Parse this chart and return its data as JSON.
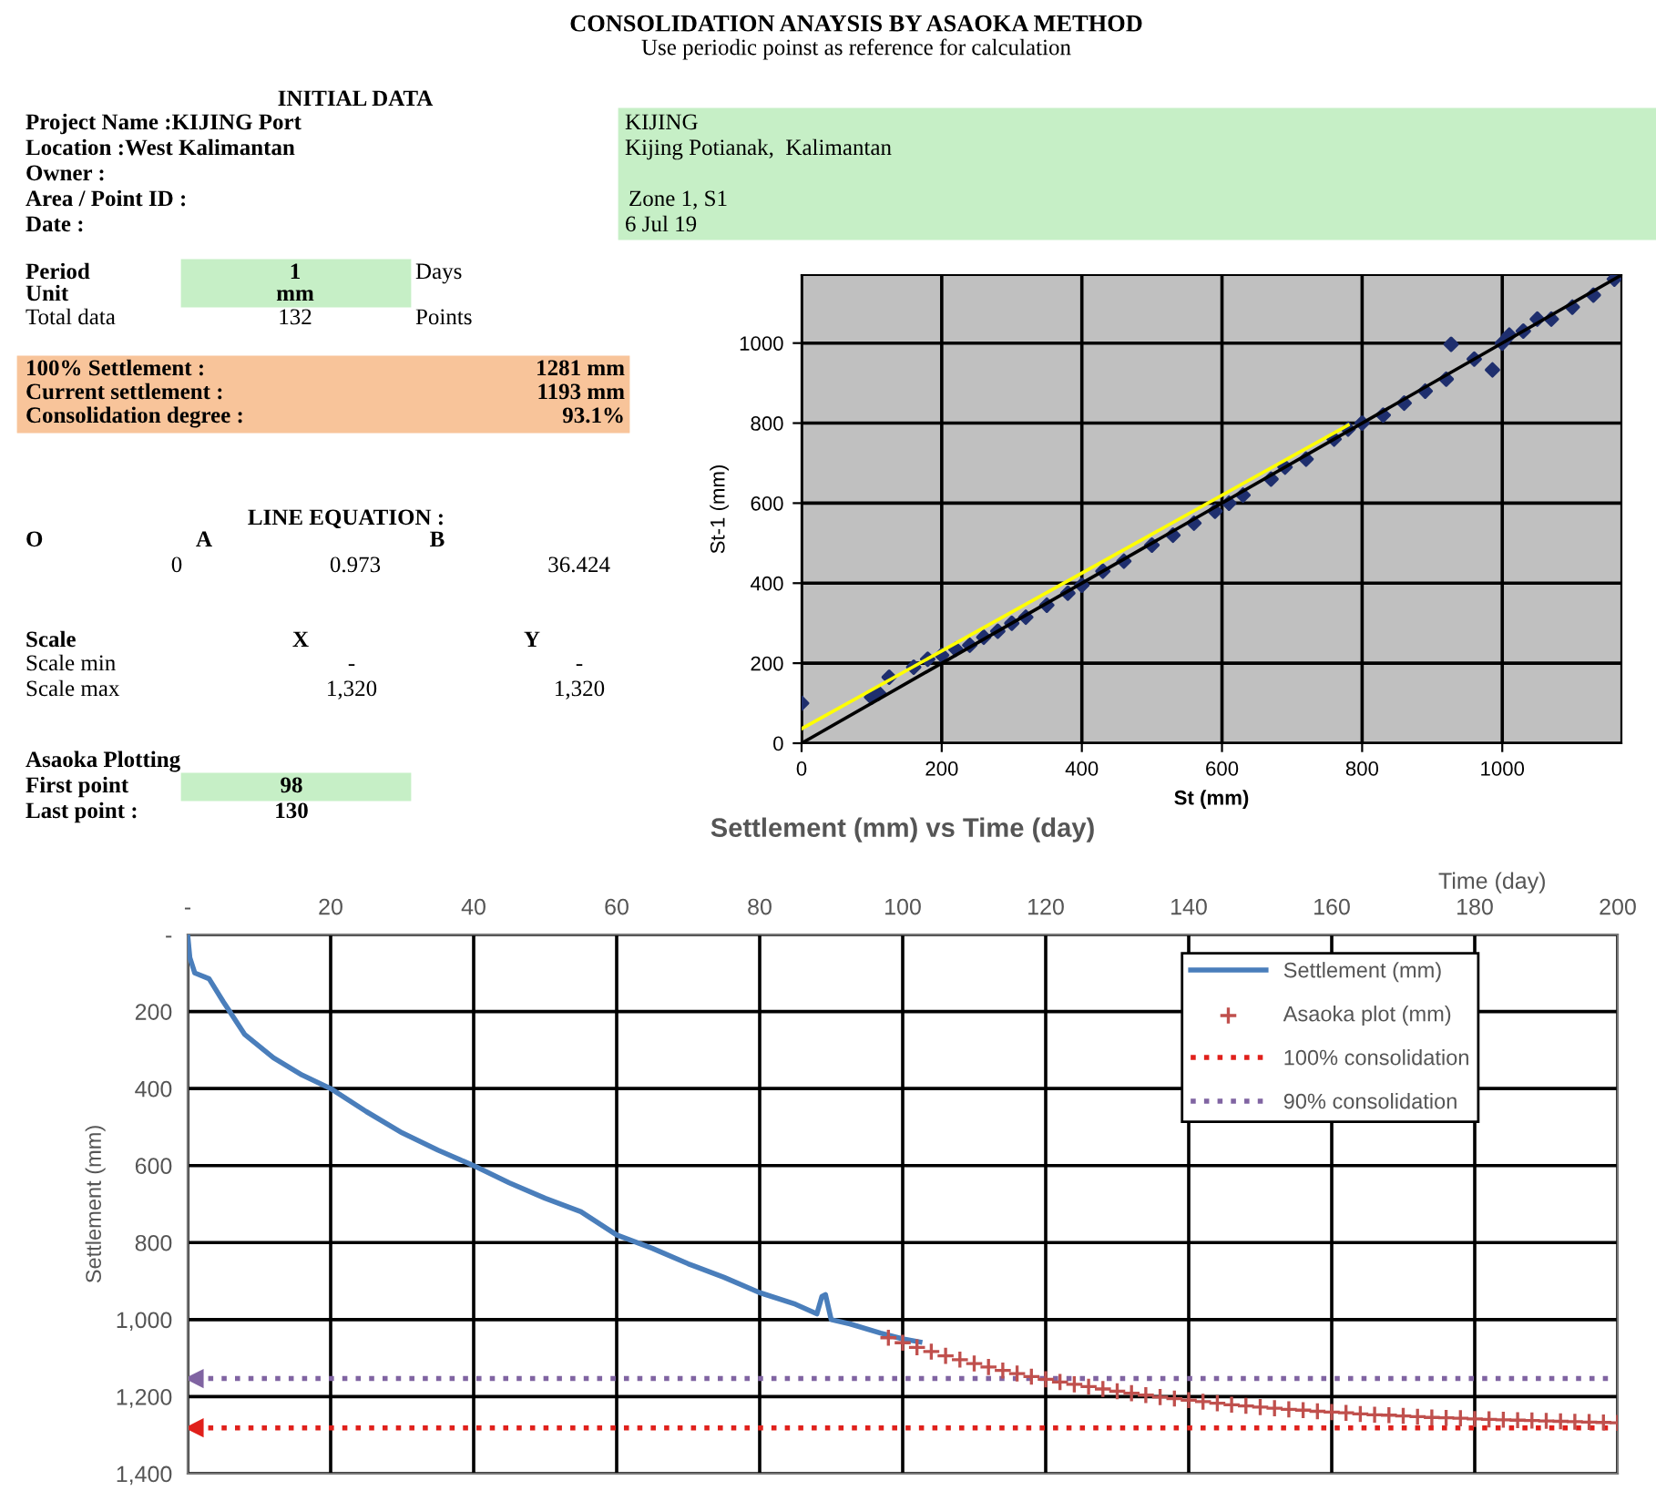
{
  "chart_data": [
    {
      "type": "other",
      "title": "CONSOLIDATION ANAYSIS BY ASAOKA METHOD",
      "subtitle": "Use periodic poinst as reference for calculation",
      "annotations": [
        "INITIAL DATA",
        "Project Name :KIJING Port",
        "Location :West Kalimantan",
        "Owner :",
        "Area / Point ID :",
        "Date :",
        "KIJING",
        "Kijing Potianak,  Kalimantan",
        "Zone 1, S1",
        "6 Jul 19",
        "Period",
        "1",
        "Days",
        "Unit",
        "mm",
        "Total data",
        "132",
        "Points",
        "100% Settlement :",
        "1281 mm",
        "Current settlement :",
        "1193 mm",
        "Consolidation degree :",
        "93.1%",
        "LINE EQUATION :",
        "O",
        "A",
        "B",
        "0",
        "0.973",
        "36.424",
        "Scale",
        "X",
        "Y",
        "Scale min",
        "-",
        "-",
        "Scale max",
        "1,320",
        "1,320",
        "Asaoka Plotting",
        "First point",
        "98",
        "Last point :",
        "130"
      ]
    },
    {
      "type": "scatter",
      "xlabel": "St (mm)",
      "ylabel": "St-1 (mm)",
      "xlim": [
        0,
        1170
      ],
      "ylim": [
        0,
        1170
      ],
      "xticks": [
        0,
        200,
        400,
        600,
        800,
        1000
      ],
      "yticks": [
        0,
        200,
        400,
        600,
        800,
        1000
      ],
      "grid": true,
      "series": [
        {
          "type": "line",
          "color": "#000000",
          "x": [
            0,
            1170
          ],
          "values": [
            0,
            1170
          ]
        },
        {
          "type": "line",
          "color": "#ffff00",
          "x": [
            0,
            780
          ],
          "values": [
            36,
            795
          ]
        },
        {
          "type": "scatter",
          "marker": "diamond",
          "color": "#1f2f6e",
          "x": [
            0,
            100,
            110,
            125,
            160,
            180,
            200,
            220,
            240,
            260,
            280,
            300,
            320,
            350,
            380,
            400,
            430,
            460,
            500,
            530,
            560,
            590,
            610,
            630,
            670,
            690,
            720,
            760,
            780,
            800,
            830,
            860,
            890,
            920,
            927,
            960,
            986,
            1000,
            1010,
            1030,
            1050,
            1070,
            1100,
            1130,
            1160
          ],
          "values": [
            100,
            115,
            125,
            165,
            190,
            210,
            220,
            235,
            245,
            265,
            280,
            300,
            315,
            345,
            375,
            395,
            430,
            455,
            495,
            520,
            550,
            580,
            600,
            620,
            660,
            690,
            710,
            760,
            785,
            800,
            820,
            850,
            880,
            910,
            997,
            960,
            933,
            1000,
            1020,
            1030,
            1060,
            1060,
            1090,
            1120,
            1160
          ]
        }
      ]
    },
    {
      "type": "line",
      "title": "Settlement (mm) vs Time (day)",
      "xlabel": "Time (day)",
      "ylabel": "Settlement (mm)",
      "xlim": [
        0,
        200
      ],
      "ylim": [
        1400,
        0
      ],
      "xticks": [
        {
          "value": 0,
          "label": "-"
        },
        20,
        40,
        60,
        80,
        100,
        120,
        140,
        160,
        180,
        200
      ],
      "yticks": [
        {
          "value": 0,
          "label": "-"
        },
        200,
        400,
        600,
        800,
        {
          "value": 1000,
          "label": "1,000"
        },
        {
          "value": 1200,
          "label": "1,200"
        },
        {
          "value": 1400,
          "label": "1,400"
        }
      ],
      "grid": true,
      "legend": "top right",
      "ref_lines": [
        {
          "axis": "y",
          "value": 1281,
          "label": "100% consolidation",
          "color": "#e0201b",
          "line_style": "dotted"
        },
        {
          "axis": "y",
          "value": 1153,
          "label": "90% consolidation",
          "color": "#8064a2",
          "line_style": "dotted"
        }
      ],
      "series": [
        {
          "name": "Settlement (mm)",
          "color": "#4a7ebb",
          "x": [
            0,
            0.3,
            1,
            3,
            5,
            8,
            12,
            16,
            20,
            25,
            30,
            35,
            40,
            45,
            50,
            55,
            60,
            65,
            70,
            75,
            80,
            85,
            88,
            88.7,
            89.2,
            90,
            92.6,
            96.9,
            100,
            102.4
          ],
          "values": [
            0,
            60,
            100,
            115,
            175,
            260,
            320,
            365,
            400,
            460,
            515,
            560,
            600,
            645,
            685,
            720,
            780,
            815,
            855,
            890,
            930,
            960,
            985,
            940,
            935,
            1000,
            1011,
            1035,
            1050,
            1058
          ]
        },
        {
          "name": "Asaoka plot (mm)",
          "type": "scatter",
          "marker": "cross",
          "color": "#c0504d",
          "x": [
            98,
            100,
            102,
            104,
            106,
            108,
            110,
            112,
            114,
            116,
            118,
            120,
            122,
            124,
            126,
            128,
            130,
            132,
            134,
            136,
            138,
            140,
            142,
            144,
            146,
            148,
            150,
            152,
            154,
            156,
            158,
            160,
            162,
            164,
            166,
            168,
            170,
            172,
            174,
            176,
            178,
            180,
            182,
            184,
            186,
            188,
            190,
            192,
            194,
            196,
            198,
            200
          ],
          "values": [
            1047,
            1060,
            1072,
            1083,
            1094,
            1104,
            1114,
            1123,
            1132,
            1140,
            1148,
            1155,
            1162,
            1168,
            1174,
            1180,
            1186,
            1191,
            1196,
            1201,
            1205,
            1209,
            1213,
            1217,
            1221,
            1224,
            1227,
            1230,
            1233,
            1235,
            1238,
            1240,
            1242,
            1245,
            1247,
            1248,
            1250,
            1252,
            1254,
            1255,
            1256,
            1258,
            1259,
            1260,
            1261,
            1262,
            1263,
            1264,
            1265,
            1266,
            1267,
            1268
          ]
        }
      ]
    }
  ]
}
